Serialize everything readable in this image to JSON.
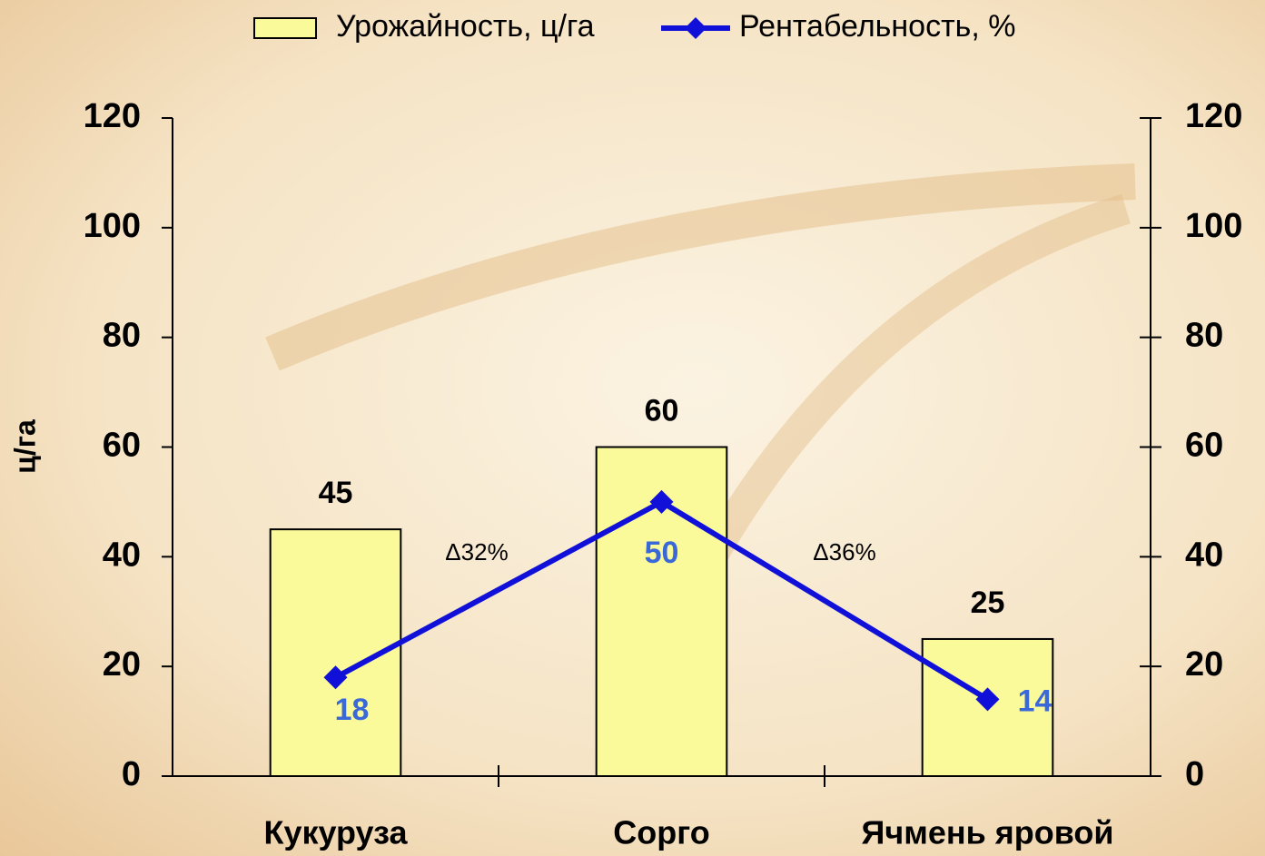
{
  "chart_data": {
    "type": "bar",
    "categories": [
      "Кукуруза",
      "Сорго",
      "Ячмень яровой"
    ],
    "series": [
      {
        "name": "Урожайность, ц/га",
        "type": "bar",
        "color": "#fafa9a",
        "values": [
          45,
          60,
          25
        ]
      },
      {
        "name": "Рентабельность, %",
        "type": "line",
        "axis": "y2",
        "color": "#1010d8",
        "label_color": "#3a68d8",
        "values": [
          18,
          50,
          14
        ]
      }
    ],
    "ylabel": "ц/га",
    "ylim": [
      0,
      120
    ],
    "yticks": [
      0,
      20,
      40,
      60,
      80,
      100,
      120
    ],
    "y2lim": [
      0,
      120
    ],
    "y2ticks": [
      0,
      20,
      40,
      60,
      80,
      100,
      120
    ],
    "annotations": [
      "Δ32%",
      "Δ36%"
    ],
    "legend": "top"
  }
}
